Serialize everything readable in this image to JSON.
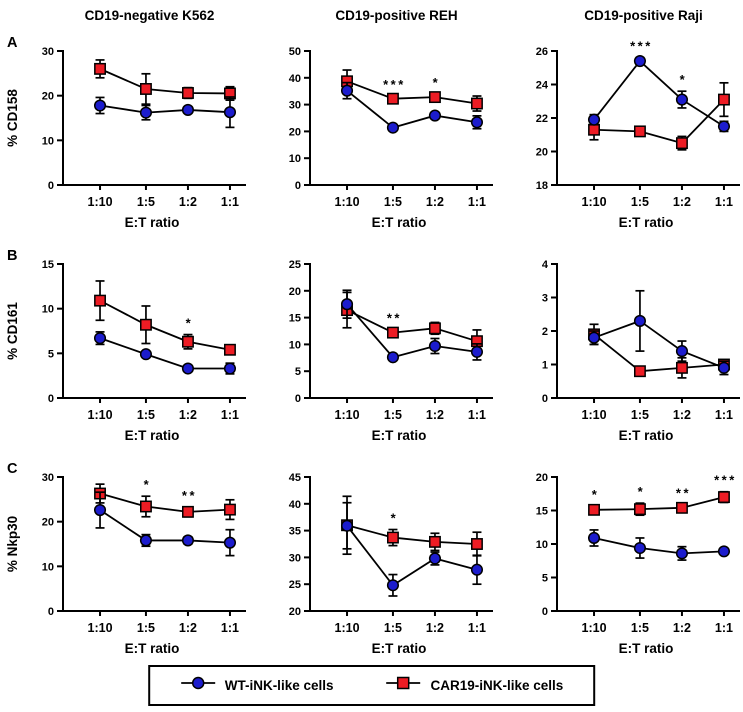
{
  "col_titles": [
    "CD19-negative K562",
    "CD19-positive REH",
    "CD19-positive Raji"
  ],
  "row_labels": [
    "A",
    "B",
    "C"
  ],
  "xlabel": "E:T ratio",
  "categories": [
    "1:10",
    "1:5",
    "1:2",
    "1:1"
  ],
  "colors": {
    "wt": "#1c1ccd",
    "car": "#ed1c24",
    "line": "#000000"
  },
  "legend": {
    "items": [
      {
        "label": "WT-iNK-like cells",
        "marker": "circle",
        "color": "#1c1ccd"
      },
      {
        "label": "CAR19-iNK-like cells",
        "marker": "square",
        "color": "#ed1c24"
      }
    ]
  },
  "chart_data": [
    {
      "type": "line",
      "row_label": "A",
      "column_title": "CD19-negative K562",
      "ylabel": "% CD158",
      "ylabel_shown": true,
      "categories": [
        "1:10",
        "1:5",
        "1:2",
        "1:1"
      ],
      "ylim": [
        0,
        30
      ],
      "yticks": [
        0,
        10,
        20,
        30
      ],
      "series": [
        {
          "name": "WT-iNK-like cells",
          "marker": "circle",
          "color": "#1c1ccd",
          "values": [
            17.8,
            16.2,
            16.8,
            16.3
          ],
          "errors": [
            1.8,
            1.6,
            0.6,
            3.4
          ]
        },
        {
          "name": "CAR19-iNK-like cells",
          "marker": "square",
          "color": "#ed1c24",
          "values": [
            26.0,
            21.5,
            20.6,
            20.5
          ],
          "errors": [
            2.0,
            3.4,
            1.2,
            1.5
          ]
        }
      ],
      "stars": []
    },
    {
      "type": "line",
      "row_label": "A",
      "column_title": "CD19-positive REH",
      "ylabel": "% CD158",
      "ylabel_shown": false,
      "categories": [
        "1:10",
        "1:5",
        "1:2",
        "1:1"
      ],
      "ylim": [
        0,
        50
      ],
      "yticks": [
        0,
        10,
        20,
        30,
        40,
        50
      ],
      "series": [
        {
          "name": "WT-iNK-like cells",
          "marker": "circle",
          "color": "#1c1ccd",
          "values": [
            35.2,
            21.4,
            25.9,
            23.4
          ],
          "errors": [
            3.0,
            0.9,
            0.9,
            2.4
          ]
        },
        {
          "name": "CAR19-iNK-like cells",
          "marker": "square",
          "color": "#ed1c24",
          "values": [
            38.7,
            32.2,
            32.8,
            30.4
          ],
          "errors": [
            4.2,
            1.1,
            1.1,
            2.8
          ]
        }
      ],
      "stars": [
        {
          "x_index": 1,
          "label": "***",
          "series_index": 1
        },
        {
          "x_index": 2,
          "label": "*",
          "series_index": 1
        }
      ]
    },
    {
      "type": "line",
      "row_label": "A",
      "column_title": "CD19-positive Raji",
      "ylabel": "% CD158",
      "ylabel_shown": false,
      "categories": [
        "1:10",
        "1:5",
        "1:2",
        "1:1"
      ],
      "ylim": [
        18,
        26
      ],
      "yticks": [
        18,
        20,
        22,
        24,
        26
      ],
      "series": [
        {
          "name": "WT-iNK-like cells",
          "marker": "circle",
          "color": "#1c1ccd",
          "values": [
            21.9,
            25.4,
            23.1,
            21.5
          ],
          "errors": [
            0.3,
            0.2,
            0.5,
            0.3
          ]
        },
        {
          "name": "CAR19-iNK-like cells",
          "marker": "square",
          "color": "#ed1c24",
          "values": [
            21.3,
            21.2,
            20.5,
            23.1
          ],
          "errors": [
            0.6,
            0.2,
            0.4,
            1.0
          ]
        }
      ],
      "stars": [
        {
          "x_index": 1,
          "label": "***",
          "series_index": 0
        },
        {
          "x_index": 2,
          "label": "*",
          "series_index": 0
        }
      ]
    },
    {
      "type": "line",
      "row_label": "B",
      "column_title": "CD19-negative K562",
      "ylabel": "% CD161",
      "ylabel_shown": true,
      "categories": [
        "1:10",
        "1:5",
        "1:2",
        "1:1"
      ],
      "ylim": [
        0,
        15
      ],
      "yticks": [
        0,
        5,
        10,
        15
      ],
      "series": [
        {
          "name": "WT-iNK-like cells",
          "marker": "circle",
          "color": "#1c1ccd",
          "values": [
            6.7,
            4.9,
            3.3,
            3.3
          ],
          "errors": [
            0.7,
            0.3,
            0.2,
            0.6
          ]
        },
        {
          "name": "CAR19-iNK-like cells",
          "marker": "square",
          "color": "#ed1c24",
          "values": [
            10.9,
            8.2,
            6.3,
            5.4
          ],
          "errors": [
            2.2,
            2.1,
            0.8,
            0.2
          ]
        }
      ],
      "stars": [
        {
          "x_index": 2,
          "label": "*",
          "series_index": 1
        }
      ]
    },
    {
      "type": "line",
      "row_label": "B",
      "column_title": "CD19-positive REH",
      "ylabel": "% CD161",
      "ylabel_shown": false,
      "categories": [
        "1:10",
        "1:5",
        "1:2",
        "1:1"
      ],
      "ylim": [
        0,
        25
      ],
      "yticks": [
        0,
        5,
        10,
        15,
        20,
        25
      ],
      "series": [
        {
          "name": "WT-iNK-like cells",
          "marker": "circle",
          "color": "#1c1ccd",
          "values": [
            17.5,
            7.6,
            9.7,
            8.6
          ],
          "errors": [
            2.6,
            0.5,
            1.4,
            1.5
          ]
        },
        {
          "name": "CAR19-iNK-like cells",
          "marker": "square",
          "color": "#ed1c24",
          "values": [
            16.4,
            12.2,
            13.0,
            10.6
          ],
          "errors": [
            3.3,
            0.6,
            1.1,
            2.1
          ]
        }
      ],
      "stars": [
        {
          "x_index": 1,
          "label": "**",
          "series_index": 1
        }
      ]
    },
    {
      "type": "line",
      "row_label": "B",
      "column_title": "CD19-positive Raji",
      "ylabel": "% CD161",
      "ylabel_shown": false,
      "categories": [
        "1:10",
        "1:5",
        "1:2",
        "1:1"
      ],
      "ylim": [
        0,
        4
      ],
      "yticks": [
        0,
        1,
        2,
        3,
        4
      ],
      "series": [
        {
          "name": "WT-iNK-like cells",
          "marker": "circle",
          "color": "#1c1ccd",
          "values": [
            1.8,
            2.3,
            1.4,
            0.9
          ],
          "errors": [
            0.2,
            0.9,
            0.3,
            0.2
          ]
        },
        {
          "name": "CAR19-iNK-like cells",
          "marker": "square",
          "color": "#ed1c24",
          "values": [
            1.9,
            0.8,
            0.9,
            1.0
          ],
          "errors": [
            0.3,
            0.1,
            0.3,
            0.1
          ]
        }
      ],
      "stars": []
    },
    {
      "type": "line",
      "row_label": "C",
      "column_title": "CD19-negative K562",
      "ylabel": "% Nkp30",
      "ylabel_shown": true,
      "categories": [
        "1:10",
        "1:5",
        "1:2",
        "1:1"
      ],
      "ylim": [
        0,
        30
      ],
      "yticks": [
        0,
        10,
        20,
        30
      ],
      "series": [
        {
          "name": "WT-iNK-like cells",
          "marker": "circle",
          "color": "#1c1ccd",
          "values": [
            22.6,
            15.8,
            15.8,
            15.3
          ],
          "errors": [
            4.0,
            1.3,
            0.8,
            2.9
          ]
        },
        {
          "name": "CAR19-iNK-like cells",
          "marker": "square",
          "color": "#ed1c24",
          "values": [
            26.3,
            23.4,
            22.2,
            22.7
          ],
          "errors": [
            2.1,
            2.3,
            1.1,
            2.2
          ]
        }
      ],
      "stars": [
        {
          "x_index": 1,
          "label": "*",
          "series_index": 1
        },
        {
          "x_index": 2,
          "label": "**",
          "series_index": 1
        }
      ]
    },
    {
      "type": "line",
      "row_label": "C",
      "column_title": "CD19-positive REH",
      "ylabel": "% Nkp30",
      "ylabel_shown": false,
      "categories": [
        "1:10",
        "1:5",
        "1:2",
        "1:1"
      ],
      "ylim": [
        20,
        45
      ],
      "yticks": [
        20,
        25,
        30,
        35,
        40,
        45
      ],
      "series": [
        {
          "name": "WT-iNK-like cells",
          "marker": "circle",
          "color": "#1c1ccd",
          "values": [
            35.9,
            24.8,
            29.8,
            27.7
          ],
          "errors": [
            4.3,
            2.0,
            1.2,
            2.7
          ]
        },
        {
          "name": "CAR19-iNK-like cells",
          "marker": "square",
          "color": "#ed1c24",
          "values": [
            36.0,
            33.7,
            32.9,
            32.5
          ],
          "errors": [
            5.4,
            1.5,
            1.6,
            2.2
          ]
        }
      ],
      "stars": [
        {
          "x_index": 1,
          "label": "*",
          "series_index": 1
        }
      ]
    },
    {
      "type": "line",
      "row_label": "C",
      "column_title": "CD19-positive Raji",
      "ylabel": "% Nkp30",
      "ylabel_shown": false,
      "categories": [
        "1:10",
        "1:5",
        "1:2",
        "1:1"
      ],
      "ylim": [
        0,
        20
      ],
      "yticks": [
        0,
        5,
        10,
        15,
        20
      ],
      "series": [
        {
          "name": "WT-iNK-like cells",
          "marker": "circle",
          "color": "#1c1ccd",
          "values": [
            10.9,
            9.4,
            8.6,
            8.9
          ],
          "errors": [
            1.2,
            1.5,
            1.0,
            0.4
          ]
        },
        {
          "name": "CAR19-iNK-like cells",
          "marker": "square",
          "color": "#ed1c24",
          "values": [
            15.1,
            15.2,
            15.4,
            17.0
          ],
          "errors": [
            0.6,
            0.9,
            0.5,
            0.8
          ]
        }
      ],
      "stars": [
        {
          "x_index": 0,
          "label": "*",
          "series_index": 1
        },
        {
          "x_index": 1,
          "label": "*",
          "series_index": 1
        },
        {
          "x_index": 2,
          "label": "**",
          "series_index": 1
        },
        {
          "x_index": 3,
          "label": "***",
          "series_index": 1
        }
      ]
    }
  ]
}
